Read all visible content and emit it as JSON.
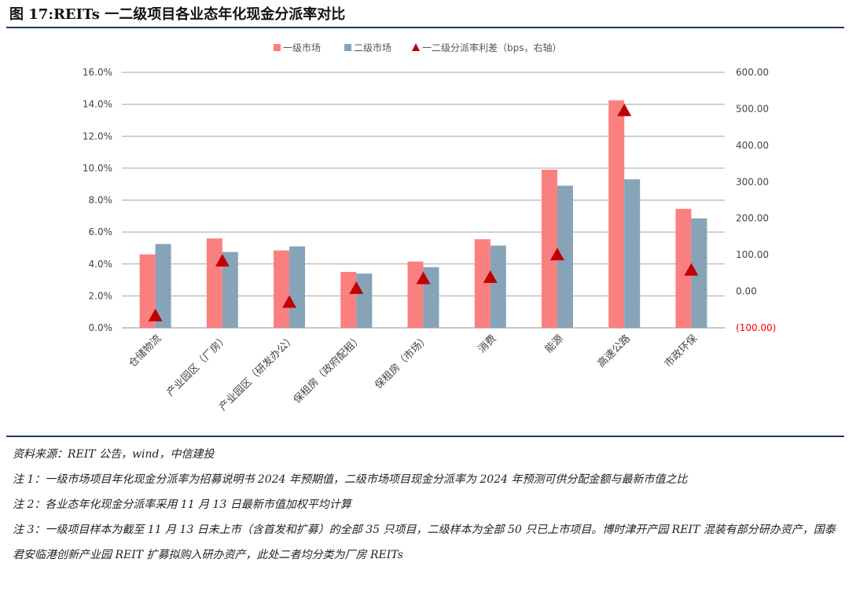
{
  "figure_title": "图 17:REITs 一二级项目各业态年化现金分派率对比",
  "colors": {
    "primary": "#fa8080",
    "secondary": "#86a3b8",
    "diff": "#c00000",
    "rule": "#1f3864",
    "negative": "#ff0000"
  },
  "chart_data": {
    "type": "bar",
    "categories": [
      "仓储物流",
      "产业园区（厂房）",
      "产业园区（研发办公）",
      "保租房（政府配租）",
      "保租房（市场）",
      "消费",
      "能源",
      "高速公路",
      "市政环保"
    ],
    "series": [
      {
        "name": "一级市场",
        "axis": "left",
        "values": [
          4.6,
          5.6,
          4.85,
          3.5,
          4.15,
          5.55,
          9.9,
          14.25,
          7.45
        ]
      },
      {
        "name": "二级市场",
        "axis": "left",
        "values": [
          5.25,
          4.75,
          5.1,
          3.4,
          3.8,
          5.15,
          8.9,
          9.3,
          6.85
        ]
      },
      {
        "name": "一二级分派率利差（bps，右轴）",
        "axis": "right",
        "marker": "triangle",
        "values": [
          -67,
          83,
          -30,
          8,
          35,
          38,
          100,
          495,
          58
        ]
      }
    ],
    "y_left": {
      "min": 0,
      "max": 16,
      "ticks": [
        "0.0%",
        "2.0%",
        "4.0%",
        "6.0%",
        "8.0%",
        "10.0%",
        "12.0%",
        "14.0%",
        "16.0%"
      ]
    },
    "y_right": {
      "min": -100,
      "max": 600,
      "ticks": [
        "(100.00)",
        "0.00",
        "100.00",
        "200.00",
        "300.00",
        "400.00",
        "500.00",
        "600.00"
      ]
    },
    "grid": true,
    "legend": "top-center"
  },
  "notes": [
    "资料来源：REIT 公告，wind，中信建投",
    "注 1：一级市场项目年化现金分派率为招募说明书 2024 年预期值，二级市场项目现金分派率为 2024 年预测可供分配金额与最新市值之比",
    "注 2：各业态年化现金分派率采用 11 月 13 日最新市值加权平均计算",
    "注 3：一级项目样本为截至 11 月 13 日未上市（含首发和扩募）的全部 35 只项目，二级样本为全部 50 只已上市项目。博时津开产园 REIT 混装有部分研办资产，国泰君安临港创新产业园 REIT 扩募拟购入研办资产，此处二者均分类为厂房 REITs"
  ]
}
